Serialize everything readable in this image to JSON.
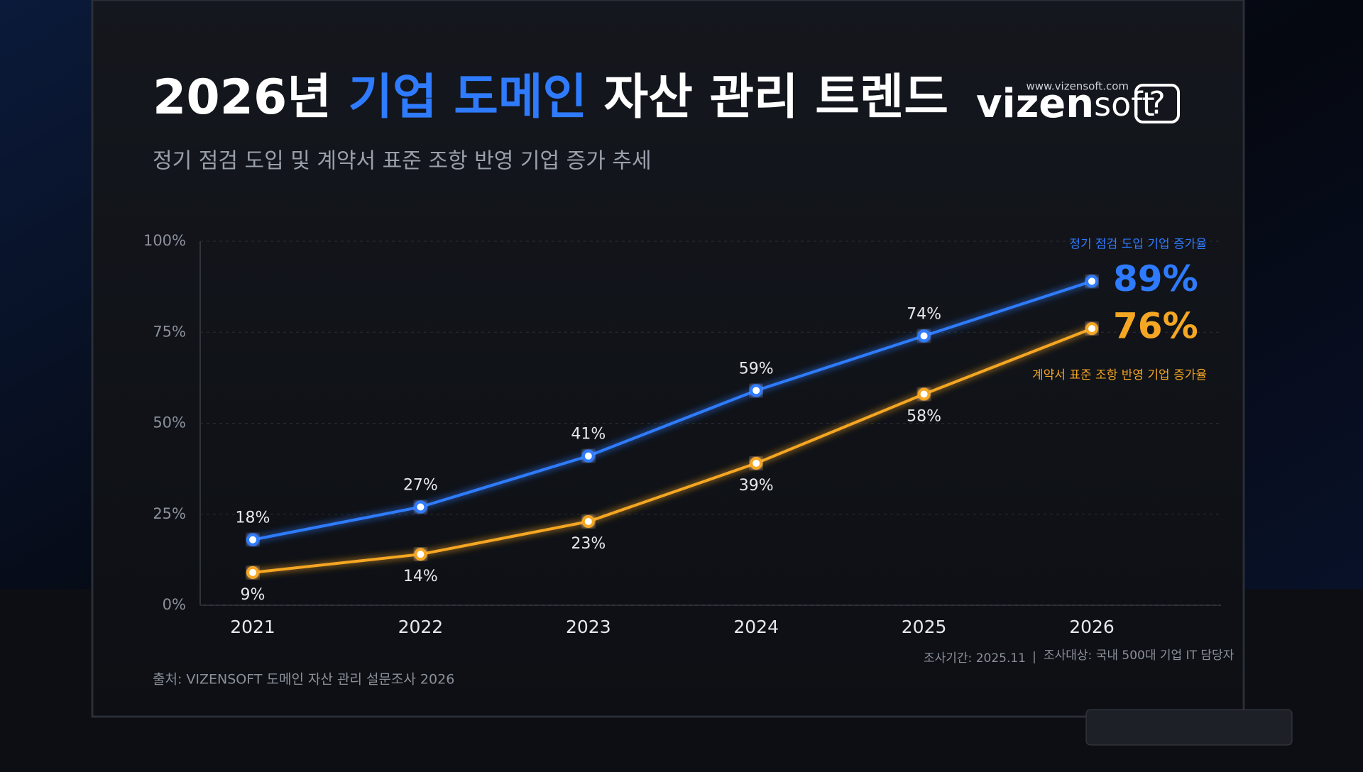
{
  "chart_data": {
    "type": "line",
    "title": [
      "2026년 ",
      "기업 도메인",
      " 자산 관리 트렌드"
    ],
    "subtitle": "정기 점검 도입 및 계약서 표준 조항 반영 기업 증가 추세",
    "logo": {
      "url": "www.vizensoft.com",
      "brand": [
        "vizen",
        "soft"
      ],
      "icon": "?"
    },
    "categories": [
      "2021",
      "2022",
      "2023",
      "2024",
      "2025",
      "2026"
    ],
    "series": [
      {
        "name": "정기 점검 도입 기업 증가율",
        "color": "#2f7bff",
        "values": [
          18,
          27,
          41,
          59,
          74,
          89
        ],
        "value_labels": [
          "18%",
          "27%",
          "41%",
          "59%",
          "74%",
          "89%"
        ]
      },
      {
        "name": "계약서 표준 조항 반영 기업 증가율",
        "color": "#f5a623",
        "values": [
          9,
          14,
          23,
          39,
          58,
          76
        ],
        "value_labels": [
          "9%",
          "14%",
          "23%",
          "39%",
          "58%",
          "76%"
        ]
      }
    ],
    "ylim": [
      0,
      100
    ],
    "yticks": [
      {
        "value": 0,
        "label": "0%"
      },
      {
        "value": 25,
        "label": "25%"
      },
      {
        "value": 50,
        "label": "50%"
      },
      {
        "value": 75,
        "label": "75%"
      },
      {
        "value": 100,
        "label": "100%"
      }
    ],
    "grid": true,
    "source": "출처: VIZENSOFT 도메인 자산 관리 설문조사 2026",
    "notes": [
      "조사기간: 2025.11",
      "조사대상: 국내 500대 기업 IT 담당자"
    ]
  }
}
